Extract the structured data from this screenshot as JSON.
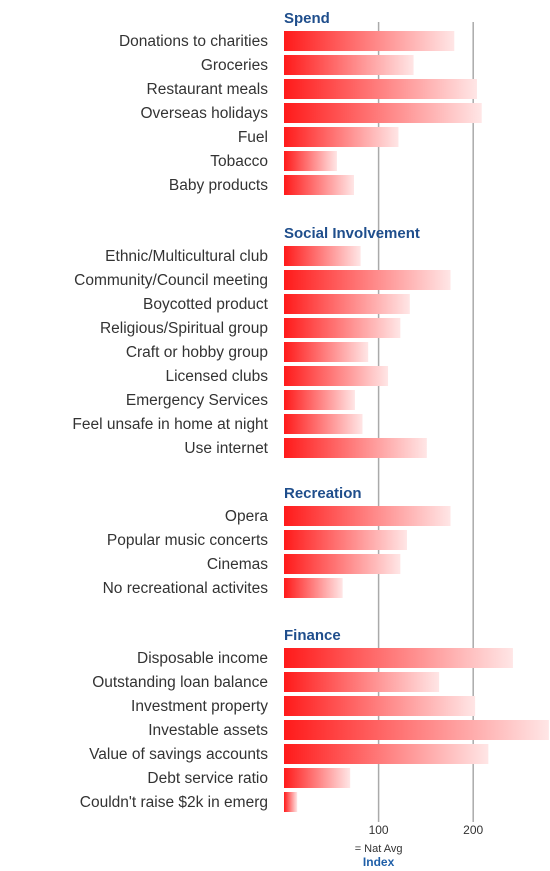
{
  "chart_data": {
    "type": "bar",
    "orientation": "horizontal",
    "xlabel": "Index",
    "reference_note": "= Nat Avg",
    "xlim": [
      0,
      280
    ],
    "xticks": [
      100,
      200
    ],
    "grid": true,
    "colors": {
      "bar_start": "#ff1a1a",
      "bar_end": "#ffe6e6",
      "section_title": "#1f4e8c",
      "axis_title": "#1f5fa8",
      "gridline": "#aaaaaa"
    },
    "sections": [
      {
        "title": "Spend",
        "categories": [
          "Donations to charities",
          "Groceries",
          "Restaurant meals",
          "Overseas holidays",
          "Fuel",
          "Tobacco",
          "Baby products"
        ],
        "values": [
          180,
          137,
          204,
          209,
          121,
          56,
          74
        ]
      },
      {
        "title": "Social Involvement",
        "categories": [
          "Ethnic/Multicultural club",
          "Community/Council meeting",
          "Boycotted product",
          "Religious/Spiritual group",
          "Craft or hobby group",
          "Licensed clubs",
          "Emergency Services",
          "Feel unsafe in home at night",
          "Use internet"
        ],
        "values": [
          81,
          176,
          133,
          123,
          89,
          110,
          75,
          83,
          151
        ]
      },
      {
        "title": "Recreation",
        "categories": [
          "Opera",
          "Popular music concerts",
          "Cinemas",
          "No recreational activites"
        ],
        "values": [
          176,
          130,
          123,
          62
        ]
      },
      {
        "title": "Finance",
        "categories": [
          "Disposable income",
          "Outstanding loan balance",
          "Investment property",
          "Investable assets",
          "Value of savings accounts",
          "Debt service ratio",
          "Couldn't raise $2k in emerg"
        ],
        "values": [
          242,
          164,
          202,
          280,
          216,
          70,
          14
        ]
      }
    ]
  }
}
